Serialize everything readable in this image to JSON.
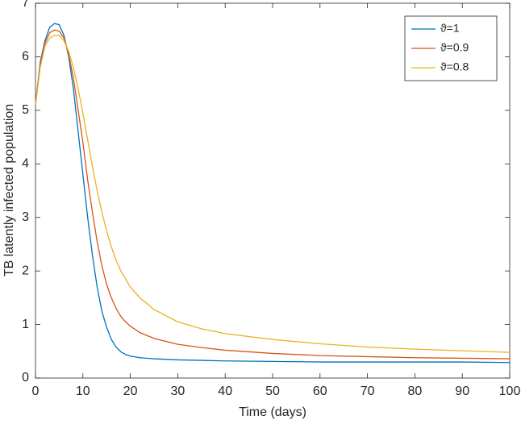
{
  "chart_data": {
    "type": "line",
    "xlabel": "Time (days)",
    "ylabel": "TB latently infected population",
    "x": [
      0,
      1,
      2,
      3,
      4,
      5,
      6,
      7,
      8,
      9,
      10,
      11,
      12,
      13,
      14,
      15,
      16,
      17,
      18,
      19,
      20,
      22,
      25,
      30,
      35,
      40,
      50,
      60,
      70,
      80,
      90,
      100
    ],
    "series": [
      {
        "name": "ϑ=1",
        "color": "#0072bd",
        "values": [
          5.1,
          5.9,
          6.3,
          6.55,
          6.62,
          6.6,
          6.4,
          6.0,
          5.4,
          4.6,
          3.8,
          3.0,
          2.3,
          1.7,
          1.25,
          0.95,
          0.72,
          0.58,
          0.49,
          0.44,
          0.41,
          0.38,
          0.36,
          0.34,
          0.33,
          0.32,
          0.31,
          0.3,
          0.3,
          0.3,
          0.3,
          0.29
        ]
      },
      {
        "name": "ϑ=0.9",
        "color": "#d95319",
        "values": [
          5.1,
          5.85,
          6.25,
          6.45,
          6.5,
          6.48,
          6.35,
          6.05,
          5.6,
          5.0,
          4.4,
          3.7,
          3.1,
          2.55,
          2.1,
          1.75,
          1.5,
          1.3,
          1.15,
          1.05,
          0.97,
          0.85,
          0.74,
          0.63,
          0.57,
          0.52,
          0.46,
          0.42,
          0.4,
          0.38,
          0.37,
          0.36
        ]
      },
      {
        "name": "ϑ=0.8",
        "color": "#edb120",
        "values": [
          5.1,
          5.8,
          6.2,
          6.35,
          6.4,
          6.4,
          6.3,
          6.1,
          5.8,
          5.4,
          4.95,
          4.45,
          3.95,
          3.5,
          3.1,
          2.75,
          2.45,
          2.2,
          2.0,
          1.85,
          1.7,
          1.5,
          1.28,
          1.05,
          0.92,
          0.83,
          0.72,
          0.64,
          0.58,
          0.54,
          0.51,
          0.48
        ]
      }
    ],
    "xlim": [
      0,
      100
    ],
    "xticks": [
      0,
      10,
      20,
      30,
      40,
      50,
      60,
      70,
      80,
      90,
      100
    ],
    "ylim": [
      0,
      7
    ],
    "yticks": [
      0,
      1,
      2,
      3,
      4,
      5,
      6,
      7
    ],
    "legend": "top-right",
    "grid": false
  }
}
